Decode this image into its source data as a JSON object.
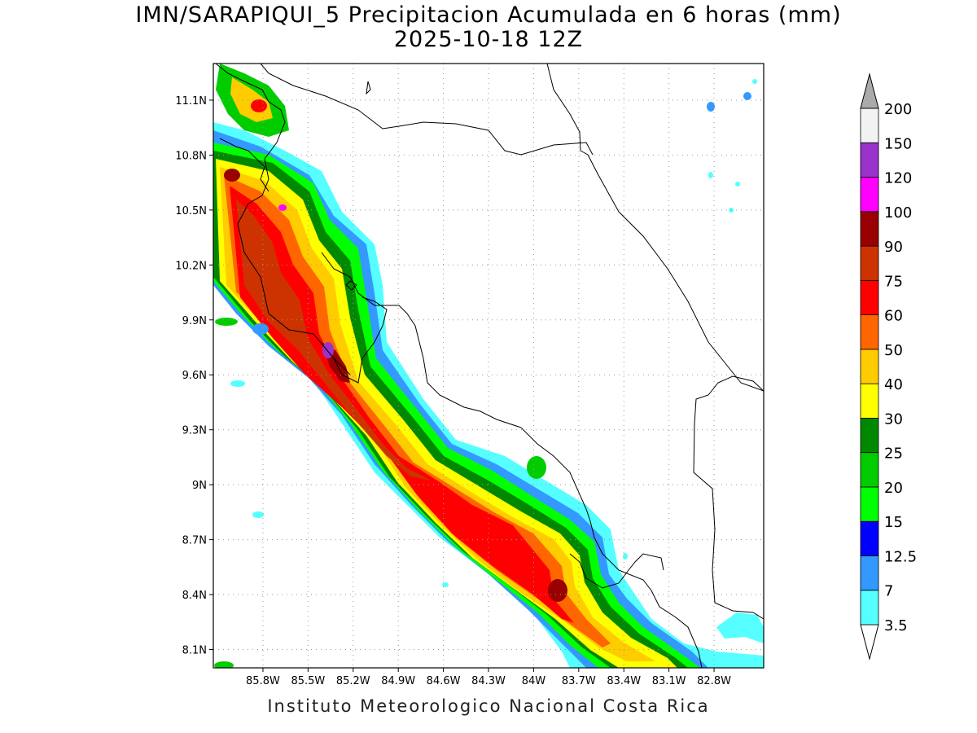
{
  "title": {
    "line1": "IMN/SARAPIQUI_5 Precipitacion Acumulada en 6 horas (mm)",
    "line2": "2025-10-18 12Z"
  },
  "credit": "Instituto Meteorologico Nacional Costa Rica",
  "map": {
    "lon_range": [
      -86.13,
      -82.47
    ],
    "lat_range": [
      8.0,
      11.3
    ],
    "lat_ticks": [
      "11.1N",
      "10.8N",
      "10.5N",
      "10.2N",
      "9.9N",
      "9.6N",
      "9.3N",
      "9N",
      "8.7N",
      "8.4N",
      "8.1N"
    ],
    "lat_values": [
      11.1,
      10.8,
      10.5,
      10.2,
      9.9,
      9.6,
      9.3,
      9.0,
      8.7,
      8.4,
      8.1
    ],
    "lon_ticks": [
      "85.8W",
      "85.5W",
      "85.2W",
      "84.9W",
      "84.6W",
      "84.3W",
      "84W",
      "83.7W",
      "83.4W",
      "83.1W",
      "82.8W"
    ],
    "lon_values": [
      -85.8,
      -85.5,
      -85.2,
      -84.9,
      -84.6,
      -84.3,
      -84.0,
      -83.7,
      -83.4,
      -83.1,
      -82.8
    ],
    "grid": true
  },
  "colorbar": {
    "labels": [
      "3.5",
      "7",
      "12.5",
      "15",
      "20",
      "25",
      "30",
      "40",
      "50",
      "60",
      "75",
      "90",
      "100",
      "120",
      "150",
      "200"
    ],
    "colors": [
      "#55ffff",
      "#3399ff",
      "#0000ff",
      "#00ff00",
      "#00cc00",
      "#008800",
      "#ffff00",
      "#ffcc00",
      "#ff6600",
      "#ff0000",
      "#cc3300",
      "#990000",
      "#ff00ff",
      "#9933cc",
      "#f2f2f2",
      "#aaaaaa"
    ]
  }
}
